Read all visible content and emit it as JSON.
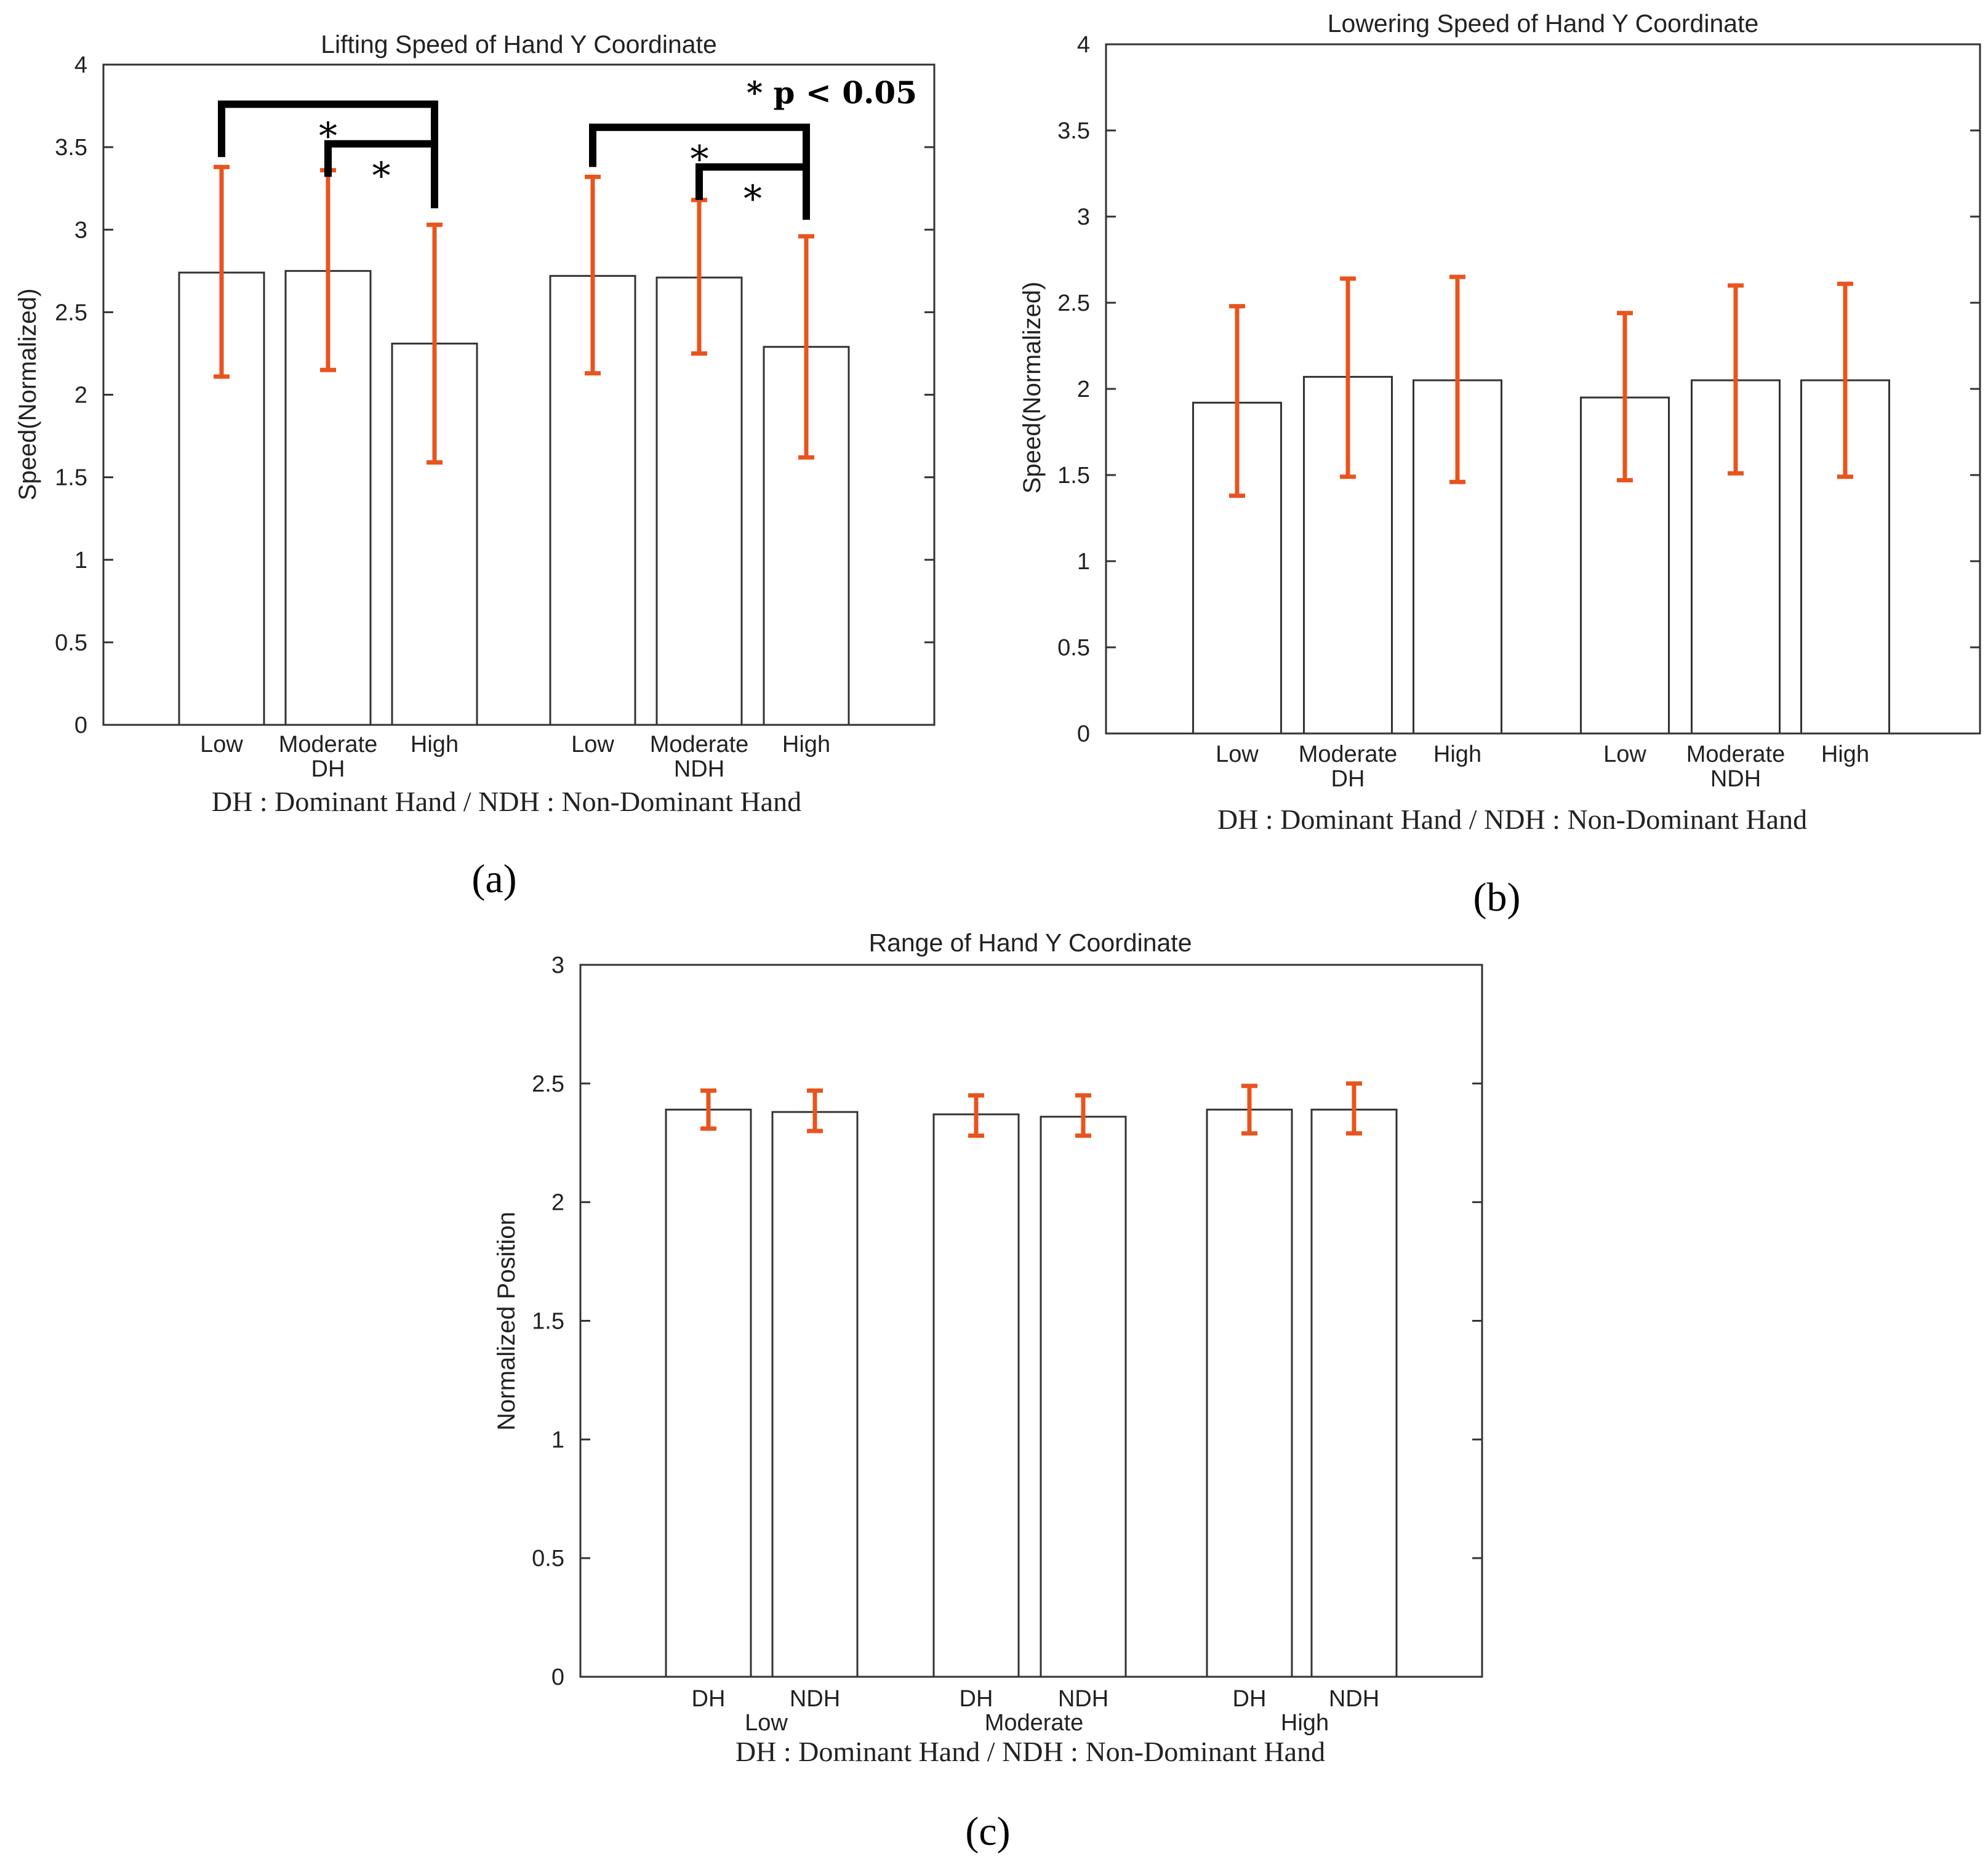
{
  "colors": {
    "error_bar": "#E8541E",
    "bar_fill": "#ffffff",
    "bar_edge": "#333333",
    "bracket": "#000000"
  },
  "chart_data": [
    {
      "type": "bar",
      "panel_label": "(a)",
      "title": "Lifting Speed of Hand Y Coordinate",
      "xlabel": "DH : Dominant Hand / NDH : Non-Dominant Hand",
      "ylabel": "Speed(Normalized)",
      "ylim": [
        0,
        4
      ],
      "yticks": [
        "0",
        "0.5",
        "1",
        "1.5",
        "2",
        "2.5",
        "3",
        "3.5",
        "4"
      ],
      "categories": [
        "Low",
        "Moderate",
        "High",
        "Low",
        "Moderate",
        "High"
      ],
      "group_labels": [
        "DH",
        "NDH"
      ],
      "values": [
        2.74,
        2.75,
        2.31,
        2.72,
        2.71,
        2.29
      ],
      "error_low": [
        2.11,
        2.15,
        1.59,
        2.13,
        2.25,
        1.62
      ],
      "error_high": [
        3.38,
        3.36,
        3.03,
        3.32,
        3.18,
        2.96
      ],
      "significance_note": "* p < 0.05",
      "significance_marker": "*",
      "significance": [
        {
          "from": 0,
          "to": 2,
          "level": 3.76
        },
        {
          "from": 1,
          "to": 2,
          "level": 3.52
        },
        {
          "from": 3,
          "to": 5,
          "level": 3.62
        },
        {
          "from": 4,
          "to": 5,
          "level": 3.38
        }
      ]
    },
    {
      "type": "bar",
      "panel_label": "(b)",
      "title": "Lowering Speed of Hand Y Coordinate",
      "xlabel": "DH : Dominant Hand / NDH : Non-Dominant Hand",
      "ylabel": "Speed(Normalized)",
      "ylim": [
        0,
        4
      ],
      "yticks": [
        "0",
        "0.5",
        "1",
        "1.5",
        "2",
        "2.5",
        "3",
        "3.5",
        "4"
      ],
      "categories": [
        "Low",
        "Moderate",
        "High",
        "Low",
        "Moderate",
        "High"
      ],
      "group_labels": [
        "DH",
        "NDH"
      ],
      "values": [
        1.92,
        2.07,
        2.05,
        1.95,
        2.05,
        2.05
      ],
      "error_low": [
        1.38,
        1.49,
        1.46,
        1.47,
        1.51,
        1.49
      ],
      "error_high": [
        2.48,
        2.64,
        2.65,
        2.44,
        2.6,
        2.61
      ]
    },
    {
      "type": "bar",
      "panel_label": "(c)",
      "title": "Range of Hand Y Coordinate",
      "xlabel": "DH : Dominant Hand / NDH : Non-Dominant Hand",
      "ylabel": "Normalized Position",
      "ylim": [
        0,
        3
      ],
      "yticks": [
        "0",
        "0.5",
        "1",
        "1.5",
        "2",
        "2.5",
        "3"
      ],
      "categories": [
        "DH",
        "NDH",
        "DH",
        "NDH",
        "DH",
        "NDH"
      ],
      "group_labels": [
        "Low",
        "Moderate",
        "High"
      ],
      "values": [
        2.39,
        2.38,
        2.37,
        2.36,
        2.39,
        2.39
      ],
      "error_low": [
        2.31,
        2.3,
        2.28,
        2.28,
        2.29,
        2.29
      ],
      "error_high": [
        2.47,
        2.47,
        2.45,
        2.45,
        2.49,
        2.5
      ]
    }
  ]
}
